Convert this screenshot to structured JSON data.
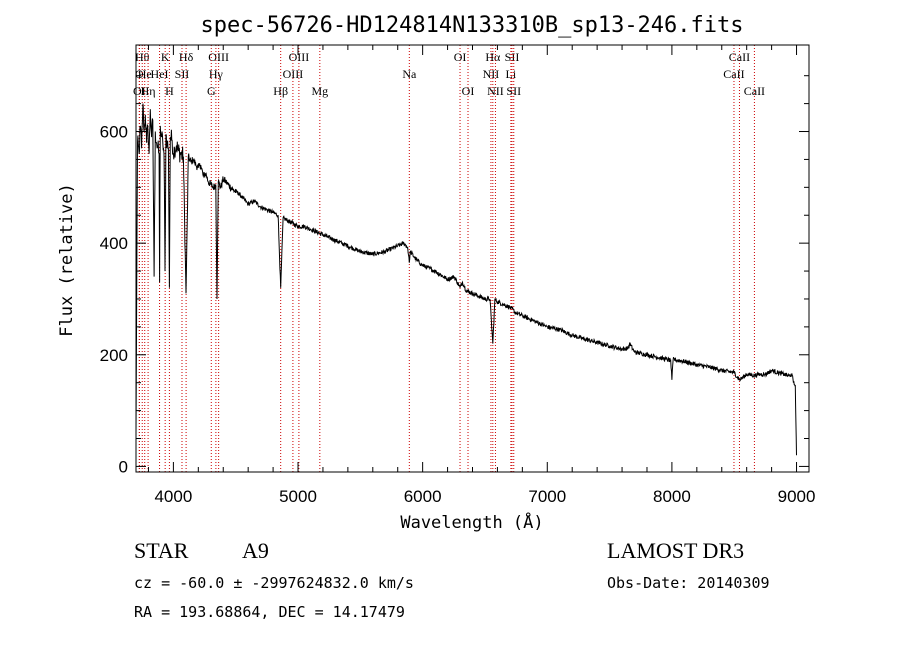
{
  "chart_data": {
    "type": "line",
    "title": "spec-56726-HD124814N133310B_sp13-246.fits",
    "xlabel": "Wavelength (Å)",
    "ylabel": "Flux (relative)",
    "xlim": [
      3700,
      9100
    ],
    "ylim": [
      -10,
      755
    ],
    "xticks": [
      4000,
      5000,
      6000,
      7000,
      8000,
      9000
    ],
    "xtick_labels": [
      "4000",
      "5000",
      "6000",
      "7000",
      "8000",
      "9000"
    ],
    "yticks": [
      0,
      200,
      400,
      600
    ],
    "ytick_labels": [
      "0",
      "200",
      "400",
      "600"
    ],
    "series": [
      {
        "name": "spectrum",
        "x": [
          3700,
          3712,
          3725,
          3735,
          3745,
          3755,
          3765,
          3775,
          3785,
          3795,
          3805,
          3815,
          3825,
          3835,
          3845,
          3855,
          3865,
          3875,
          3885,
          3889,
          3895,
          3905,
          3915,
          3925,
          3933,
          3940,
          3950,
          3960,
          3968,
          3975,
          3990,
          4000,
          4010,
          4025,
          4040,
          4060,
          4080,
          4101,
          4120,
          4140,
          4160,
          4180,
          4200,
          4220,
          4240,
          4260,
          4280,
          4300,
          4320,
          4340,
          4350,
          4360,
          4380,
          4400,
          4440,
          4480,
          4520,
          4560,
          4600,
          4650,
          4700,
          4750,
          4800,
          4840,
          4861,
          4880,
          4920,
          4960,
          5000,
          5050,
          5100,
          5150,
          5200,
          5300,
          5400,
          5500,
          5600,
          5700,
          5800,
          5850,
          5880,
          5893,
          5900,
          5950,
          6000,
          6100,
          6200,
          6250,
          6280,
          6300,
          6320,
          6350,
          6400,
          6450,
          6500,
          6540,
          6563,
          6580,
          6600,
          6650,
          6700,
          6750,
          6800,
          6900,
          7000,
          7100,
          7200,
          7300,
          7400,
          7500,
          7600,
          7650,
          7660,
          7700,
          7800,
          7900,
          7950,
          7990,
          8000,
          8010,
          8100,
          8200,
          8300,
          8400,
          8500,
          8542,
          8600,
          8662,
          8700,
          8750,
          8800,
          8850,
          8900,
          8940,
          8960,
          8965,
          8975,
          8990,
          8995,
          9000
        ],
        "values": [
          60,
          580,
          560,
          610,
          570,
          650,
          600,
          630,
          580,
          610,
          560,
          640,
          590,
          620,
          340,
          600,
          580,
          570,
          560,
          330,
          610,
          590,
          580,
          560,
          350,
          595,
          580,
          570,
          320,
          590,
          585,
          560,
          570,
          575,
          565,
          560,
          555,
          310,
          555,
          545,
          550,
          540,
          535,
          540,
          520,
          525,
          510,
          505,
          500,
          505,
          300,
          510,
          500,
          515,
          505,
          495,
          490,
          480,
          470,
          475,
          465,
          460,
          455,
          450,
          320,
          445,
          440,
          435,
          430,
          430,
          425,
          420,
          415,
          405,
          395,
          385,
          380,
          385,
          395,
          400,
          392,
          365,
          385,
          370,
          360,
          350,
          335,
          340,
          330,
          320,
          330,
          315,
          310,
          305,
          300,
          300,
          220,
          300,
          295,
          290,
          285,
          275,
          270,
          260,
          250,
          245,
          235,
          228,
          222,
          216,
          210,
          212,
          220,
          205,
          200,
          195,
          192,
          190,
          155,
          192,
          188,
          182,
          178,
          172,
          168,
          155,
          165,
          163,
          165,
          165,
          172,
          168,
          165,
          162,
          165,
          163,
          150,
          145,
          80,
          20
        ]
      }
    ],
    "line_color": "#000000",
    "marker_color": "#cc0000",
    "spectral_lines": [
      {
        "label": "O",
        "x": 3727,
        "row": 2
      },
      {
        "label": "OI",
        "x": 3727,
        "row": 3
      },
      {
        "label": "Hθ",
        "x": 3750,
        "row": 1
      },
      {
        "label": "He",
        "x": 3770,
        "row": 2
      },
      {
        "label": "Hη",
        "x": 3797,
        "row": 3
      },
      {
        "label": "K",
        "x": 3934,
        "row": 1
      },
      {
        "label": "HeI",
        "x": 3889,
        "row": 2
      },
      {
        "label": "H",
        "x": 3968,
        "row": 3
      },
      {
        "label": "Hδ",
        "x": 4102,
        "row": 1
      },
      {
        "label": "SII",
        "x": 4069,
        "row": 2
      },
      {
        "label": "OIII",
        "x": 4363,
        "row": 1
      },
      {
        "label": "Hγ",
        "x": 4341,
        "row": 2
      },
      {
        "label": "G",
        "x": 4304,
        "row": 3
      },
      {
        "label": "Hβ",
        "x": 4861,
        "row": 3
      },
      {
        "label": "OIII",
        "x": 5007,
        "row": 1
      },
      {
        "label": "OIII",
        "x": 4959,
        "row": 2
      },
      {
        "label": "Mg",
        "x": 5175,
        "row": 3
      },
      {
        "label": "Na",
        "x": 5893,
        "row": 2
      },
      {
        "label": "OI",
        "x": 6300,
        "row": 1
      },
      {
        "label": "OI",
        "x": 6364,
        "row": 3
      },
      {
        "label": "Hα",
        "x": 6563,
        "row": 1
      },
      {
        "label": "NII",
        "x": 6548,
        "row": 2
      },
      {
        "label": "NII",
        "x": 6584,
        "row": 3
      },
      {
        "label": "SII",
        "x": 6717,
        "row": 1
      },
      {
        "label": "Li",
        "x": 6708,
        "row": 2
      },
      {
        "label": "SII",
        "x": 6731,
        "row": 3
      },
      {
        "label": "CaII",
        "x": 8542,
        "row": 1
      },
      {
        "label": "CaII",
        "x": 8498,
        "row": 2
      },
      {
        "label": "CaII",
        "x": 8662,
        "row": 3
      }
    ]
  },
  "info": {
    "object_class": "STAR",
    "subclass": "A9",
    "survey": "LAMOST DR3",
    "cz": "cz = -60.0 ± -2997624832.0 km/s",
    "obs_date": "Obs-Date: 20140309",
    "radec": "RA = 193.68864, DEC =  14.17479"
  }
}
